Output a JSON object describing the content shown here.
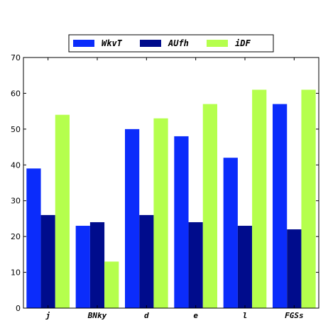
{
  "chart_data": {
    "type": "bar",
    "title": "",
    "xlabel": "",
    "ylabel": "",
    "categories": [
      "j",
      "BNky",
      "d",
      "e",
      "l",
      "FGSs"
    ],
    "series": [
      {
        "name": "WkvT",
        "color": "#0b2cfb",
        "values": [
          39,
          23,
          50,
          48,
          42,
          57
        ]
      },
      {
        "name": "AUfh",
        "color": "#000c8c",
        "values": [
          26,
          24,
          26,
          24,
          23,
          22
        ]
      },
      {
        "name": "iDF",
        "color": "#b5ff4d",
        "values": [
          54,
          13,
          53,
          57,
          61,
          61
        ]
      }
    ],
    "ylim": [
      0,
      70
    ],
    "yticks": [
      0,
      10,
      20,
      30,
      40,
      50,
      60,
      70
    ],
    "grid": false,
    "legend_position": "top-center"
  }
}
